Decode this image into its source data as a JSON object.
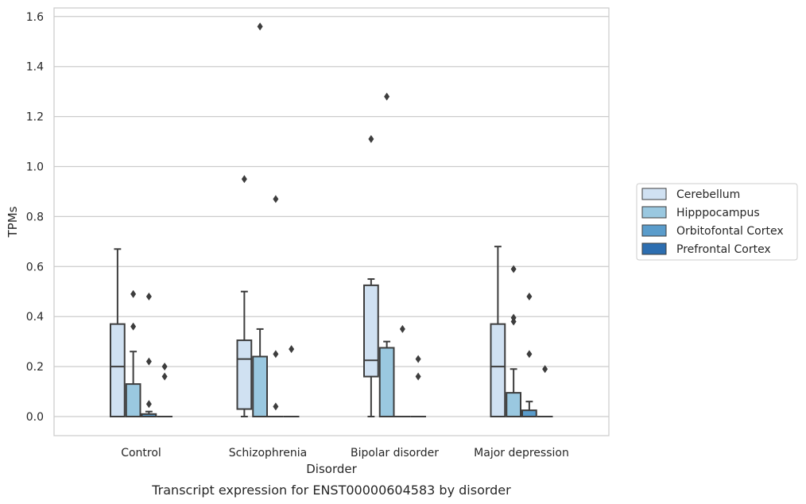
{
  "chart_data": {
    "type": "box",
    "title": "",
    "caption": "Transcript expression for ENST00000604583 by disorder",
    "xlabel": "Disorder",
    "ylabel": "TPMs",
    "ylim": [
      -0.08,
      1.64
    ],
    "yticks": [
      0.0,
      0.2,
      0.4,
      0.6,
      0.8,
      1.0,
      1.2,
      1.4,
      1.6
    ],
    "ytick_labels": [
      "0.0",
      "0.2",
      "0.4",
      "0.6",
      "0.8",
      "1.0",
      "1.2",
      "1.4",
      "1.6"
    ],
    "grid": "horizontal",
    "legend_placement": "right-outside",
    "categories": [
      "Control",
      "Schizophrenia",
      "Bipolar disorder",
      "Major depression"
    ],
    "series": [
      {
        "name": "Cerebellum",
        "color": "#d0e1f2",
        "boxes": [
          {
            "q1": 0.0,
            "median": 0.2,
            "q3": 0.37,
            "whisker_low": 0.0,
            "whisker_high": 0.67,
            "outliers": []
          },
          {
            "q1": 0.03,
            "median": 0.23,
            "q3": 0.305,
            "whisker_low": 0.0,
            "whisker_high": 0.5,
            "outliers": [
              0.95
            ]
          },
          {
            "q1": 0.16,
            "median": 0.225,
            "q3": 0.525,
            "whisker_low": 0.0,
            "whisker_high": 0.55,
            "outliers": [
              1.11
            ]
          },
          {
            "q1": 0.0,
            "median": 0.2,
            "q3": 0.37,
            "whisker_low": 0.0,
            "whisker_high": 0.68,
            "outliers": []
          }
        ]
      },
      {
        "name": "Hipppocampus",
        "color": "#9ac8e0",
        "boxes": [
          {
            "q1": 0.0,
            "median": 0.0,
            "q3": 0.13,
            "whisker_low": 0.0,
            "whisker_high": 0.26,
            "outliers": [
              0.49,
              0.36
            ]
          },
          {
            "q1": 0.0,
            "median": 0.0,
            "q3": 0.24,
            "whisker_low": 0.0,
            "whisker_high": 0.35,
            "outliers": [
              1.56
            ]
          },
          {
            "q1": 0.0,
            "median": 0.0,
            "q3": 0.275,
            "whisker_low": 0.0,
            "whisker_high": 0.3,
            "outliers": [
              1.28
            ]
          },
          {
            "q1": 0.0,
            "median": 0.0,
            "q3": 0.095,
            "whisker_low": 0.0,
            "whisker_high": 0.19,
            "outliers": [
              0.59,
              0.395,
              0.38
            ]
          }
        ]
      },
      {
        "name": "Orbitofontal Cortex",
        "color": "#5a9ccb",
        "boxes": [
          {
            "q1": 0.0,
            "median": 0.0,
            "q3": 0.01,
            "whisker_low": 0.0,
            "whisker_high": 0.02,
            "outliers": [
              0.48,
              0.22,
              0.05
            ]
          },
          {
            "q1": 0.0,
            "median": 0.0,
            "q3": 0.0,
            "whisker_low": 0.0,
            "whisker_high": 0.0,
            "outliers": [
              0.87,
              0.25,
              0.04
            ]
          },
          {
            "q1": 0.0,
            "median": 0.0,
            "q3": 0.0,
            "whisker_low": 0.0,
            "whisker_high": 0.0,
            "outliers": [
              0.35
            ]
          },
          {
            "q1": 0.0,
            "median": 0.0,
            "q3": 0.025,
            "whisker_low": 0.0,
            "whisker_high": 0.06,
            "outliers": [
              0.48,
              0.25
            ]
          }
        ]
      },
      {
        "name": "Prefrontal Cortex",
        "color": "#2d6eb0",
        "boxes": [
          {
            "q1": 0.0,
            "median": 0.0,
            "q3": 0.0,
            "whisker_low": 0.0,
            "whisker_high": 0.0,
            "outliers": [
              0.2,
              0.16
            ]
          },
          {
            "q1": 0.0,
            "median": 0.0,
            "q3": 0.0,
            "whisker_low": 0.0,
            "whisker_high": 0.0,
            "outliers": [
              0.27
            ]
          },
          {
            "q1": 0.0,
            "median": 0.0,
            "q3": 0.0,
            "whisker_low": 0.0,
            "whisker_high": 0.0,
            "outliers": [
              0.23,
              0.16
            ]
          },
          {
            "q1": 0.0,
            "median": 0.0,
            "q3": 0.0,
            "whisker_low": 0.0,
            "whisker_high": 0.0,
            "outliers": [
              0.19
            ]
          }
        ]
      }
    ]
  }
}
